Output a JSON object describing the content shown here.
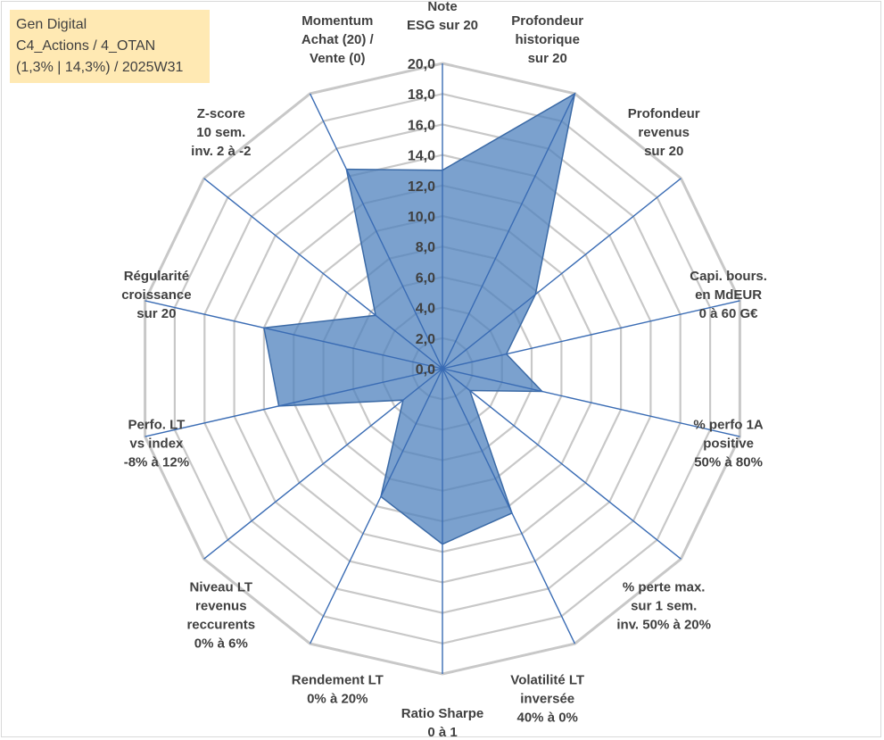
{
  "info_box": {
    "line1": "Gen Digital",
    "line2": "C4_Actions / 4_OTAN",
    "line3": "(1,3% | 14,3%) / 2025W31"
  },
  "chart_data": {
    "type": "radar",
    "rmin": 0,
    "rmax": 20,
    "tick_step": 2,
    "tick_labels": [
      "0,0",
      "2,0",
      "4,0",
      "6,0",
      "8,0",
      "10,0",
      "12,0",
      "14,0",
      "16,0",
      "18,0",
      "20,0"
    ],
    "grid": true,
    "series_color": "#4f81bd",
    "categories": [
      {
        "label": [
          "Note",
          "ESG sur 20"
        ],
        "value": 13.0
      },
      {
        "label": [
          "Profondeur",
          "historique",
          "sur 20"
        ],
        "value": 20.0
      },
      {
        "label": [
          "Profondeur",
          "revenus",
          "sur 20"
        ],
        "value": 7.8
      },
      {
        "label": [
          "Capi. bours.",
          "en MdEUR",
          "0 à 60 G€"
        ],
        "value": 4.3
      },
      {
        "label": [
          "% perfo 1A",
          "positive",
          "50% à 80%"
        ],
        "value": 6.7
      },
      {
        "label": [
          "% perte max.",
          "sur 1 sem.",
          "inv. 50% à 20%"
        ],
        "value": 2.3
      },
      {
        "label": [
          "Volatilité LT",
          "inversée",
          "40% à 0%"
        ],
        "value": 10.5
      },
      {
        "label": [
          "Ratio Sharpe",
          "0 à 1"
        ],
        "value": 11.5
      },
      {
        "label": [
          "Rendement LT",
          "0% à 20%"
        ],
        "value": 9.3
      },
      {
        "label": [
          "Niveau LT",
          "revenus",
          "reccurents",
          "0% à 6%"
        ],
        "value": 3.3
      },
      {
        "label": [
          "Perfo. LT",
          "vs index",
          "-8% à 12%"
        ],
        "value": 11.0
      },
      {
        "label": [
          "Régularité",
          "croissance",
          "sur 20"
        ],
        "value": 12.0
      },
      {
        "label": [
          "Z-score",
          "10 sem.",
          "inv. 2 à -2"
        ],
        "value": 5.6
      },
      {
        "label": [
          "Momentum",
          "Achat (20) /",
          "Vente (0)"
        ],
        "value": 14.5
      }
    ]
  }
}
